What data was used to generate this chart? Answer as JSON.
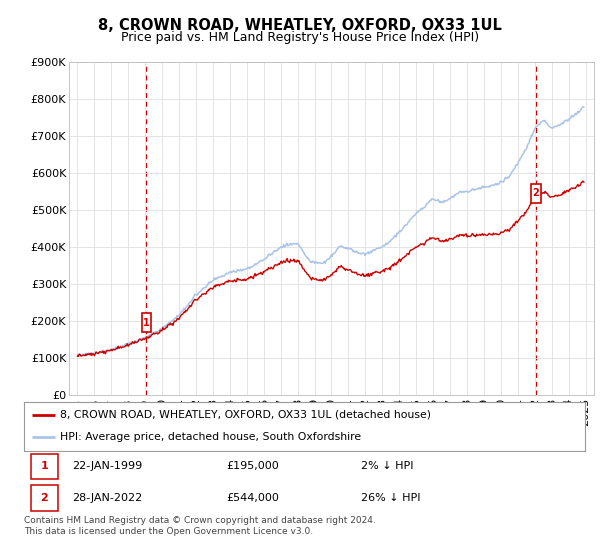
{
  "title": "8, CROWN ROAD, WHEATLEY, OXFORD, OX33 1UL",
  "subtitle": "Price paid vs. HM Land Registry's House Price Index (HPI)",
  "ylim": [
    0,
    900000
  ],
  "xlim_start": 1994.5,
  "xlim_end": 2025.5,
  "yticks": [
    0,
    100000,
    200000,
    300000,
    400000,
    500000,
    600000,
    700000,
    800000,
    900000
  ],
  "ytick_labels": [
    "£0",
    "£100K",
    "£200K",
    "£300K",
    "£400K",
    "£500K",
    "£600K",
    "£700K",
    "£800K",
    "£900K"
  ],
  "sale1_date": 1999.07,
  "sale1_price": 195000,
  "sale2_date": 2022.07,
  "sale2_price": 544000,
  "hpi_line_color": "#aac4e8",
  "price_line_color": "#cc0000",
  "vline_color": "#cc0000",
  "legend_line1": "8, CROWN ROAD, WHEATLEY, OXFORD, OX33 1UL (detached house)",
  "legend_line2": "HPI: Average price, detached house, South Oxfordshire",
  "annotation1_date": "22-JAN-1999",
  "annotation1_price": "£195,000",
  "annotation1_hpi": "2% ↓ HPI",
  "annotation2_date": "28-JAN-2022",
  "annotation2_price": "£544,000",
  "annotation2_hpi": "26% ↓ HPI",
  "footer": "Contains HM Land Registry data © Crown copyright and database right 2024.\nThis data is licensed under the Open Government Licence v3.0.",
  "background_color": "#ffffff",
  "grid_color": "#e0e0e0",
  "title_fontsize": 10.5,
  "subtitle_fontsize": 9,
  "tick_fontsize": 8
}
